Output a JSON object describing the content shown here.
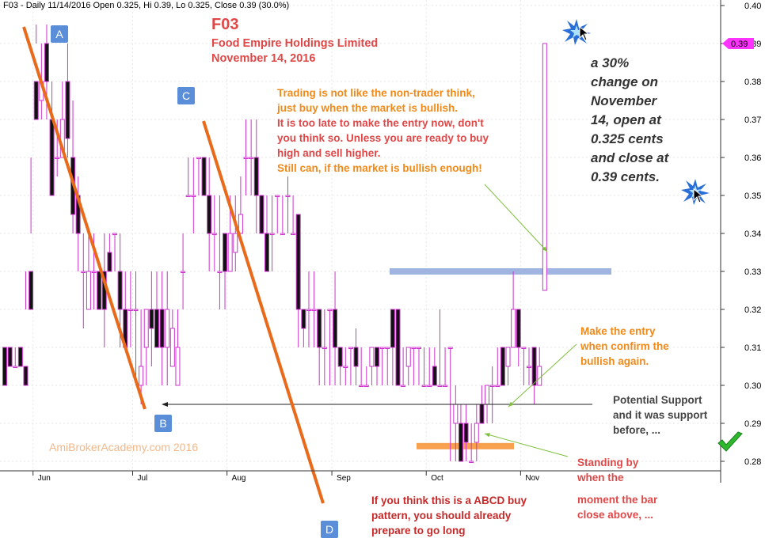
{
  "header": "F03 - Daily 11/14/2016 Open 0.325, Hi 0.39, Lo 0.325, Close 0.39 (30.0%)",
  "titles": {
    "symbol": "F03",
    "company": "Food Empire Holdings Limited",
    "date": "November 14, 2016"
  },
  "watermark": "AmiBrokerAcademy.com   2016",
  "point_labels": [
    "A",
    "B",
    "C",
    "D"
  ],
  "annotations": {
    "trading": [
      "Trading is not like the non-trader think,",
      "just buy when the market is bullish.",
      "It is too late to make the entry now, don't",
      "you think so. Unless you are ready to buy",
      "high and sell higher.",
      "Still can, if the market is bullish enough!"
    ],
    "change": [
      "a 30%",
      "change on",
      "November",
      "14, open at",
      "0.325 cents",
      "and close at",
      "0.39 cents."
    ],
    "entry": [
      "Make the entry",
      "when confirm the",
      "bullish again."
    ],
    "support": [
      "Potential Support",
      "and it was support",
      "before, ..."
    ],
    "standing": [
      "Standing by",
      "when the"
    ],
    "moment": [
      "moment  the bar",
      "close above, ..."
    ],
    "abcd": [
      "If you think this is a ABCD buy",
      "pattern, you should already",
      "prepare to go long"
    ]
  },
  "colors": {
    "candle": "#cc33cc",
    "trendline": "#e86a1a",
    "support_line": "#222222",
    "resistance_band": "#9fb4e0",
    "low_band": "#f7a050",
    "arrow": "#7fbf3f",
    "label_box": "#5b8ed8",
    "price_tag": "#ff33ff",
    "checkmark": "#2eb82e"
  },
  "icons": [
    "star-burst-icon",
    "mouse-cursor-icon",
    "check-mark-icon"
  ],
  "chart_data": {
    "type": "candlestick",
    "ylim": [
      0.275,
      0.4
    ],
    "yticks": [
      "0.28",
      "0.29",
      "0.30",
      "0.31",
      "0.32",
      "0.33",
      "0.34",
      "0.35",
      "0.36",
      "0.37",
      "0.38",
      "0.39",
      "0.40"
    ],
    "x_months": [
      "Jun",
      "Jul",
      "Aug",
      "Sep",
      "Oct",
      "Nov"
    ],
    "last_price_tag": "0.39",
    "reference_lines": {
      "support": 0.295,
      "resistance_band": 0.33,
      "low_band": 0.284
    },
    "candles": [
      [
        0.31,
        0.3,
        0.31,
        0.3
      ],
      [
        0.31,
        0.305,
        0.31,
        0.31
      ],
      [
        0.305,
        0.305,
        0.31,
        0.305
      ],
      [
        0.31,
        0.305,
        0.31,
        0.305
      ],
      [
        0.305,
        0.3,
        0.33,
        0.32
      ],
      [
        0.33,
        0.32,
        0.36,
        0.34
      ],
      [
        0.38,
        0.37,
        0.395,
        0.39
      ],
      [
        0.375,
        0.38,
        0.39,
        0.37
      ],
      [
        0.39,
        0.38,
        0.395,
        0.37
      ],
      [
        0.37,
        0.35,
        0.38,
        0.35
      ],
      [
        0.36,
        0.36,
        0.37,
        0.355
      ],
      [
        0.36,
        0.37,
        0.38,
        0.36
      ],
      [
        0.38,
        0.365,
        0.39,
        0.36
      ],
      [
        0.36,
        0.345,
        0.375,
        0.34
      ],
      [
        0.35,
        0.34,
        0.355,
        0.33
      ],
      [
        0.33,
        0.33,
        0.34,
        0.315
      ],
      [
        0.32,
        0.33,
        0.34,
        0.32
      ],
      [
        0.33,
        0.33,
        0.34,
        0.32
      ],
      [
        0.33,
        0.32,
        0.33,
        0.32
      ],
      [
        0.33,
        0.32,
        0.34,
        0.31
      ],
      [
        0.335,
        0.33,
        0.34,
        0.33
      ],
      [
        0.34,
        0.34,
        0.34,
        0.33
      ],
      [
        0.33,
        0.32,
        0.34,
        0.31
      ],
      [
        0.32,
        0.31,
        0.33,
        0.31
      ],
      [
        0.32,
        0.32,
        0.33,
        0.31
      ],
      [
        0.32,
        0.32,
        0.33,
        0.3
      ],
      [
        0.3,
        0.305,
        0.32,
        0.295
      ],
      [
        0.31,
        0.32,
        0.32,
        0.3
      ],
      [
        0.32,
        0.315,
        0.33,
        0.305
      ],
      [
        0.32,
        0.31,
        0.33,
        0.31
      ],
      [
        0.32,
        0.31,
        0.33,
        0.3
      ],
      [
        0.31,
        0.32,
        0.33,
        0.3
      ],
      [
        0.305,
        0.315,
        0.32,
        0.305
      ],
      [
        0.3,
        0.31,
        0.32,
        0.3
      ],
      [
        0.33,
        0.33,
        0.34,
        0.32
      ],
      [
        0.35,
        0.35,
        0.36,
        0.35
      ],
      [
        0.35,
        0.35,
        0.36,
        0.34
      ],
      [
        0.36,
        0.36,
        0.36,
        0.35
      ],
      [
        0.36,
        0.35,
        0.36,
        0.35
      ],
      [
        0.35,
        0.34,
        0.36,
        0.33
      ],
      [
        0.34,
        0.34,
        0.35,
        0.33
      ],
      [
        0.33,
        0.33,
        0.35,
        0.32
      ],
      [
        0.34,
        0.33,
        0.34,
        0.32
      ],
      [
        0.33,
        0.34,
        0.35,
        0.33
      ],
      [
        0.335,
        0.34,
        0.35,
        0.33
      ],
      [
        0.34,
        0.345,
        0.355,
        0.34
      ],
      [
        0.36,
        0.36,
        0.37,
        0.35
      ],
      [
        0.36,
        0.36,
        0.37,
        0.35
      ],
      [
        0.36,
        0.35,
        0.37,
        0.34
      ],
      [
        0.35,
        0.34,
        0.35,
        0.34
      ],
      [
        0.34,
        0.33,
        0.35,
        0.33
      ],
      [
        0.34,
        0.34,
        0.35,
        0.33
      ],
      [
        0.35,
        0.35,
        0.35,
        0.34
      ],
      [
        0.34,
        0.34,
        0.35,
        0.34
      ],
      [
        0.35,
        0.35,
        0.355,
        0.34
      ],
      [
        0.34,
        0.34,
        0.35,
        0.34
      ],
      [
        0.345,
        0.32,
        0.345,
        0.31
      ],
      [
        0.32,
        0.315,
        0.32,
        0.31
      ],
      [
        0.32,
        0.32,
        0.33,
        0.31
      ],
      [
        0.32,
        0.32,
        0.33,
        0.31
      ],
      [
        0.32,
        0.31,
        0.32,
        0.3
      ],
      [
        0.31,
        0.31,
        0.32,
        0.3
      ],
      [
        0.32,
        0.32,
        0.32,
        0.3
      ],
      [
        0.32,
        0.31,
        0.33,
        0.3
      ],
      [
        0.31,
        0.305,
        0.31,
        0.3
      ],
      [
        0.305,
        0.305,
        0.31,
        0.3
      ],
      [
        0.31,
        0.31,
        0.31,
        0.3
      ],
      [
        0.31,
        0.305,
        0.315,
        0.3
      ],
      [
        0.3,
        0.3,
        0.31,
        0.3
      ],
      [
        0.3,
        0.3,
        0.305,
        0.3
      ],
      [
        0.305,
        0.31,
        0.31,
        0.3
      ],
      [
        0.31,
        0.305,
        0.31,
        0.3
      ],
      [
        0.31,
        0.31,
        0.31,
        0.3
      ],
      [
        0.31,
        0.31,
        0.31,
        0.3
      ],
      [
        0.32,
        0.31,
        0.32,
        0.3
      ],
      [
        0.32,
        0.3,
        0.32,
        0.3
      ],
      [
        0.3,
        0.3,
        0.31,
        0.3
      ],
      [
        0.305,
        0.31,
        0.31,
        0.3
      ],
      [
        0.31,
        0.31,
        0.31,
        0.3
      ],
      [
        0.31,
        0.31,
        0.31,
        0.3
      ],
      [
        0.3,
        0.3,
        0.31,
        0.3
      ],
      [
        0.3,
        0.3,
        0.31,
        0.3
      ],
      [
        0.305,
        0.3,
        0.31,
        0.3
      ],
      [
        0.3,
        0.3,
        0.32,
        0.3
      ],
      [
        0.3,
        0.3,
        0.31,
        0.3
      ],
      [
        0.31,
        0.31,
        0.31,
        0.28
      ],
      [
        0.29,
        0.295,
        0.3,
        0.28
      ],
      [
        0.29,
        0.28,
        0.295,
        0.28
      ],
      [
        0.29,
        0.285,
        0.295,
        0.28
      ],
      [
        0.28,
        0.28,
        0.29,
        0.28
      ],
      [
        0.285,
        0.29,
        0.295,
        0.28
      ],
      [
        0.295,
        0.29,
        0.3,
        0.29
      ],
      [
        0.295,
        0.3,
        0.3,
        0.29
      ],
      [
        0.3,
        0.3,
        0.305,
        0.29
      ],
      [
        0.3,
        0.3,
        0.31,
        0.3
      ],
      [
        0.31,
        0.3,
        0.31,
        0.3
      ],
      [
        0.305,
        0.31,
        0.31,
        0.3
      ],
      [
        0.31,
        0.32,
        0.33,
        0.31
      ],
      [
        0.32,
        0.31,
        0.32,
        0.305
      ],
      [
        0.31,
        0.31,
        0.31,
        0.3
      ],
      [
        0.305,
        0.305,
        0.31,
        0.3
      ],
      [
        0.31,
        0.3,
        0.31,
        0.295
      ],
      [
        0.3,
        0.305,
        0.31,
        0.3
      ],
      [
        0.325,
        0.39,
        0.39,
        0.325
      ]
    ]
  }
}
